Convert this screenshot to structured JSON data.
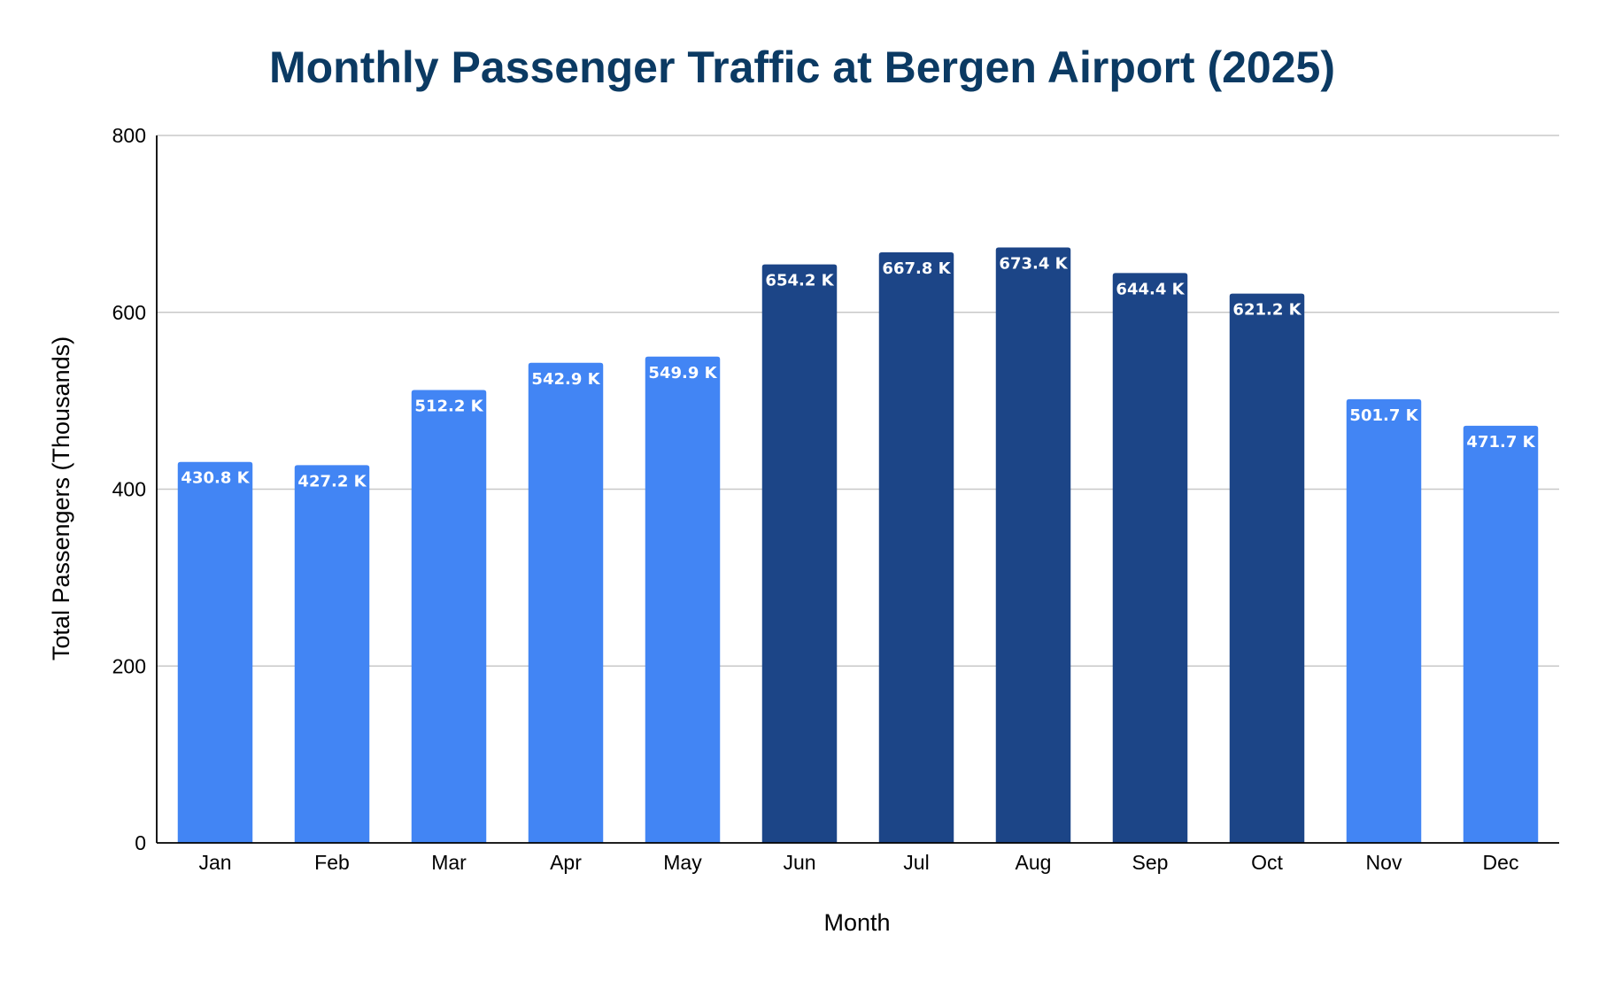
{
  "chart_data": {
    "type": "bar",
    "title": "Monthly Passenger Traffic at Bergen Airport (2025)",
    "xlabel": "Month",
    "ylabel": "Total Passengers (Thousands)",
    "categories": [
      "Jan",
      "Feb",
      "Mar",
      "Apr",
      "May",
      "Jun",
      "Jul",
      "Aug",
      "Sep",
      "Oct",
      "Nov",
      "Dec"
    ],
    "values": [
      430.8,
      427.2,
      512.2,
      542.9,
      549.9,
      654.2,
      667.8,
      673.4,
      644.4,
      621.2,
      501.7,
      471.7
    ],
    "data_labels": [
      "430.8 K",
      "427.2 K",
      "512.2 K",
      "542.9 K",
      "549.9 K",
      "654.2 K",
      "667.8 K",
      "673.4 K",
      "644.4 K",
      "621.2 K",
      "501.7 K",
      "471.7 K"
    ],
    "highlighted": [
      false,
      false,
      false,
      false,
      false,
      true,
      true,
      true,
      true,
      true,
      false,
      false
    ],
    "ylim": [
      0,
      800
    ],
    "yticks": [
      0,
      200,
      400,
      600,
      800
    ],
    "ytick_labels": [
      "0",
      "200",
      "400",
      "600",
      "800"
    ],
    "grid": true,
    "legend": "none",
    "colors": {
      "bar": "#4285f4",
      "bar_highlight": "#1c4587",
      "title": "#0b3a63",
      "gridline": "#c8c8c8",
      "axis": "#000000",
      "data_label": "#ffffff"
    }
  }
}
